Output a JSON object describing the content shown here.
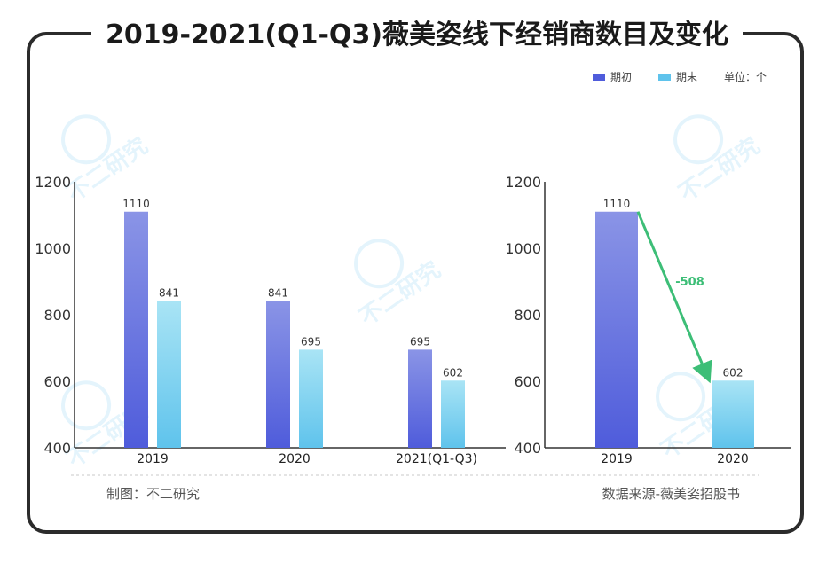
{
  "title": "2019-2021(Q1-Q3)薇美姿线下经销商数目及变化",
  "legend": {
    "start_label": "期初",
    "end_label": "期末",
    "unit": "单位：个"
  },
  "colors": {
    "start_top": "#8A94E6",
    "start_bottom": "#4F5CDB",
    "end_top": "#A9E4F5",
    "end_bottom": "#5FC3EC",
    "arrow": "#3DBE77",
    "frame": "#2b2b2b"
  },
  "footer": {
    "left": "制图：不二研究",
    "right": "数据来源-薇美姿招股书"
  },
  "watermark": "不二研究",
  "chart_data": [
    {
      "type": "bar",
      "categories": [
        "2019",
        "2020",
        "2021(Q1-Q3)"
      ],
      "series": [
        {
          "name": "期初",
          "values": [
            1110,
            841,
            695
          ]
        },
        {
          "name": "期末",
          "values": [
            841,
            695,
            602
          ]
        }
      ],
      "yticks": [
        400,
        600,
        800,
        1000,
        1200
      ],
      "ylim": [
        400,
        1200
      ],
      "legend": "top-right",
      "grid": false
    },
    {
      "type": "bar",
      "categories": [
        "2019",
        "2020"
      ],
      "values": [
        1110,
        602
      ],
      "yticks": [
        400,
        600,
        800,
        1000,
        1200
      ],
      "ylim": [
        400,
        1200
      ],
      "annotation": "-508",
      "grid": false
    }
  ]
}
